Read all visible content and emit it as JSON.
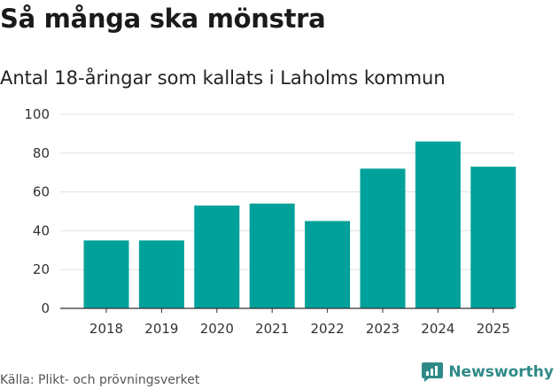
{
  "header": {
    "title": "Så många ska mönstra",
    "subtitle": "Antal 18-åringar som kallats i Laholms kommun"
  },
  "footer": {
    "source": "Källa: Plikt- och prövningsverket",
    "brand": "Newsworthy"
  },
  "colors": {
    "bar": "#00a19a",
    "grid": "#e0e0e0",
    "axis": "#333333",
    "brand": "#2f8a87"
  },
  "chart_data": {
    "type": "bar",
    "title": "Så många ska mönstra",
    "subtitle": "Antal 18-åringar som kallats i Laholms kommun",
    "categories": [
      "2018",
      "2019",
      "2020",
      "2021",
      "2022",
      "2023",
      "2024",
      "2025"
    ],
    "values": [
      35,
      35,
      53,
      54,
      45,
      72,
      86,
      73
    ],
    "ylim": [
      0,
      100
    ],
    "yticks": [
      0,
      20,
      40,
      60,
      80,
      100
    ],
    "xlabel": "",
    "ylabel": "",
    "grid": true
  }
}
